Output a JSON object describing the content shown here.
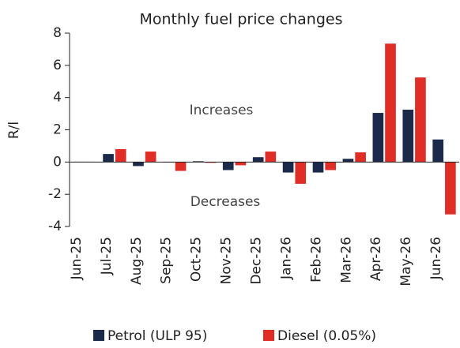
{
  "chart_data": {
    "type": "bar",
    "title": "Monthly fuel price changes",
    "y_label": "R/l",
    "annotations": [
      "Increases",
      "Decreases"
    ],
    "categories": [
      "Jun-25",
      "Jul-25",
      "Aug-25",
      "Sep-25",
      "Oct-25",
      "Nov-25",
      "Dec-25",
      "Jan-26",
      "Feb-26",
      "Mar-26",
      "Apr-26",
      "May-26",
      "Jun-26"
    ],
    "series": [
      {
        "name": "Petrol (ULP 95)",
        "color": "#1b2a4a",
        "values": [
          0.02,
          0.5,
          -0.25,
          0,
          0.05,
          -0.5,
          0.3,
          -0.65,
          -0.65,
          0.2,
          3.05,
          3.25,
          1.4
        ]
      },
      {
        "name": "Diesel (0.05%)",
        "color": "#e02d26",
        "values": [
          0.02,
          0.8,
          0.65,
          -0.55,
          -0.05,
          -0.2,
          0.65,
          -1.35,
          -0.5,
          0.6,
          7.35,
          5.25,
          -3.25
        ]
      }
    ],
    "ylim": [
      -4,
      8
    ],
    "yticks": [
      -4,
      -2,
      0,
      2,
      4,
      6,
      8
    ],
    "legend": "bottom"
  }
}
